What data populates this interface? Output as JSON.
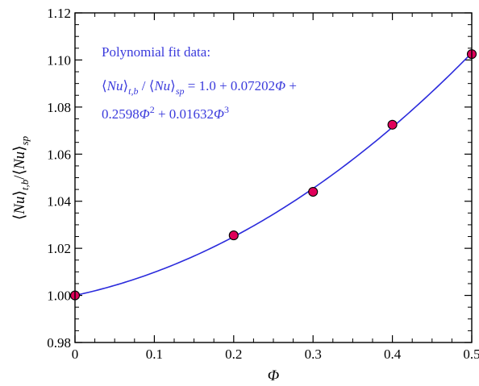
{
  "chart_data": {
    "type": "scatter",
    "xlabel": "Φ",
    "ylabel": "⟨Nu⟩t,b/⟨Nu⟩sp",
    "xlim": [
      0,
      0.5
    ],
    "ylim": [
      0.98,
      1.12
    ],
    "x_ticks": [
      "0",
      "0.1",
      "0.2",
      "0.3",
      "0.4",
      "0.5"
    ],
    "y_ticks": [
      "0.98",
      "1.00",
      "1.02",
      "1.04",
      "1.06",
      "1.08",
      "1.10",
      "1.12"
    ],
    "grid": false,
    "series": [
      {
        "kind": "markers",
        "color": "#e0005a",
        "x": [
          0,
          0.2,
          0.3,
          0.4,
          0.5
        ],
        "y": [
          1.0,
          1.0255,
          1.044,
          1.0725,
          1.1025
        ]
      },
      {
        "kind": "fit-line",
        "color": "#2b2bdc",
        "coefficients": [
          1.0,
          0.07202,
          0.2598,
          0.01632
        ]
      }
    ],
    "annotation": {
      "color": "#3b3bdc",
      "line1": "Polynomial fit data:",
      "line2_expr": "⟨Nu⟩t,b / ⟨Nu⟩sp = 1.0 + 0.07202Φ +",
      "line3_expr": "0.2598Φ2 + 0.01632Φ3"
    }
  }
}
